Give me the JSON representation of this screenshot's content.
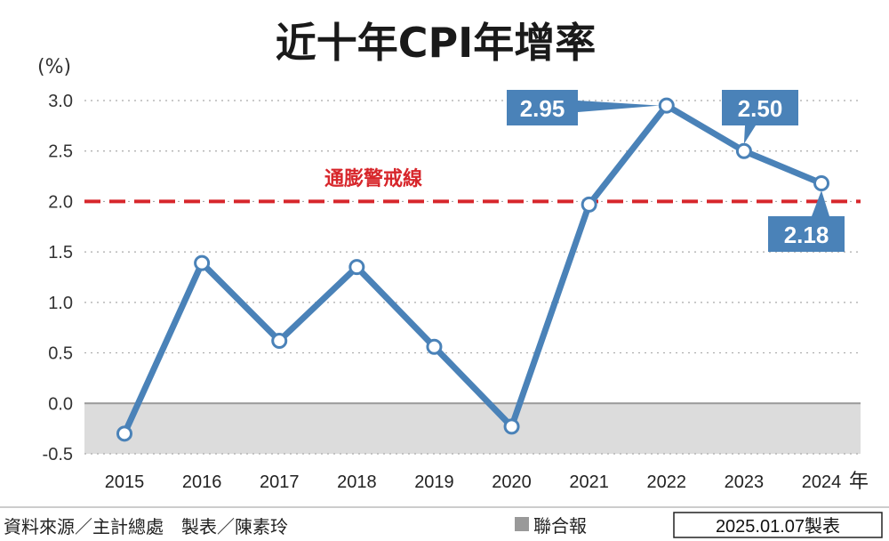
{
  "colors": {
    "line": "#4a82b8",
    "threshold": "#d7262b",
    "negative_band": "#dcdcdc",
    "callout": "#4a82b8",
    "background": "#ffffff"
  },
  "chart_data": {
    "type": "line",
    "title": "近十年CPI年增率",
    "ylabel": "(%)",
    "xlabel": "年",
    "ylim": [
      -0.5,
      3.0
    ],
    "yticks": [
      "3.0",
      "2.5",
      "2.0",
      "1.5",
      "1.0",
      "0.5",
      "0.0",
      "-0.5"
    ],
    "categories": [
      "2015",
      "2016",
      "2017",
      "2018",
      "2019",
      "2020",
      "2021",
      "2022",
      "2023",
      "2024"
    ],
    "values": [
      -0.3,
      1.39,
      0.62,
      1.35,
      0.56,
      -0.23,
      1.97,
      2.95,
      2.5,
      2.18
    ],
    "threshold": {
      "value": 2.0,
      "label": "通膨警戒線"
    },
    "callouts": [
      "2.95",
      "2.50",
      "2.18"
    ],
    "grid": "dotted horizontal",
    "shaded_below_zero": true
  },
  "footer": {
    "source": "資料來源／主計總處　製表／陳素玲",
    "publisher": "聯合報",
    "date": "2025.01.07製表"
  }
}
